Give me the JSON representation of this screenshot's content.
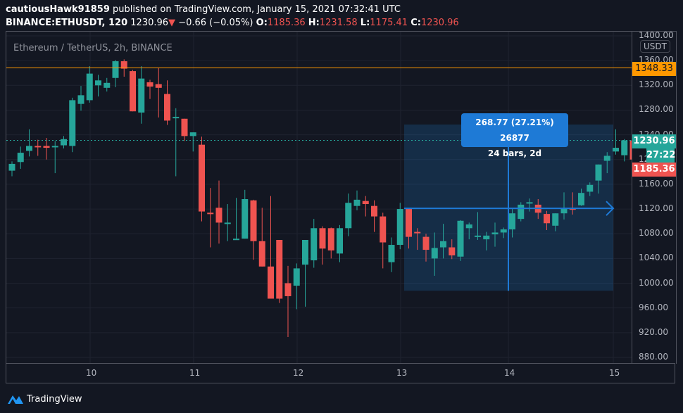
{
  "header": {
    "author": "cautiousHawk91859",
    "published": " published on TradingView.com, January 15, 2021 07:32:41 UTC",
    "symbol": "BINANCE:ETHUSDT, 120",
    "last": "1230.96",
    "change": "−0.66 (−0.05%)",
    "o_label": "O:",
    "o": "1185.36",
    "h_label": "H:",
    "h": "1231.58",
    "l_label": "L:",
    "l": "1175.41",
    "c_label": "C:",
    "c": "1230.96"
  },
  "legend": "Ethereum / TetherUS, 2h, BINANCE",
  "price_scale": {
    "currency": "USDT",
    "ticks": [
      "1400.00",
      "1360.00",
      "1320.00",
      "1280.00",
      "1240.00",
      "1200.00",
      "1160.00",
      "1120.00",
      "1080.00",
      "1040.00",
      "1000.00",
      "960.00",
      "920.00",
      "880.00"
    ],
    "tags": {
      "hline": "1348.33",
      "last": "1230.96",
      "countdown": "27:22",
      "open": "1185.36"
    }
  },
  "time_scale": {
    "ticks": [
      "10",
      "11",
      "12",
      "13",
      "14",
      "15"
    ]
  },
  "measure": {
    "line1": "268.77 (27.21%) 26877",
    "line2": "24 bars, 2d"
  },
  "brand": "TradingView",
  "colors": {
    "up": "#26a69a",
    "down": "#ef5350",
    "hline": "#ff9800",
    "measure": "#1e7ad6",
    "bg": "#131722"
  },
  "chart_data": {
    "type": "candlestick",
    "title": "Ethereum / TetherUS, 2h, BINANCE",
    "xlabel": "",
    "ylabel": "USDT",
    "ylim": [
      880,
      1400
    ],
    "x_ticks": [
      "10",
      "11",
      "12",
      "13",
      "14",
      "15"
    ],
    "horizontal_line": 1348.33,
    "last_price": 1230.96,
    "measure_box": {
      "from_price": 987.8,
      "to_price": 1256.6,
      "change": "268.77 (27.21%)",
      "bars": 24,
      "duration": "2d"
    },
    "candles": [
      [
        1182,
        1193,
        1197,
        1173
      ],
      [
        1196,
        1211,
        1221,
        1185
      ],
      [
        1214,
        1222,
        1249,
        1205
      ],
      [
        1222,
        1220,
        1232,
        1206
      ],
      [
        1222,
        1219,
        1235,
        1200
      ],
      [
        1220,
        1222,
        1230,
        1178
      ],
      [
        1223,
        1233,
        1238,
        1218
      ],
      [
        1222,
        1296,
        1300,
        1212
      ],
      [
        1290,
        1304,
        1319,
        1279
      ],
      [
        1296,
        1339,
        1351,
        1292
      ],
      [
        1320,
        1328,
        1337,
        1302
      ],
      [
        1316,
        1324,
        1332,
        1310
      ],
      [
        1332,
        1359,
        1361,
        1317
      ],
      [
        1359,
        1347,
        1362,
        1334
      ],
      [
        1343,
        1278,
        1345,
        1278
      ],
      [
        1276,
        1331,
        1351,
        1258
      ],
      [
        1325,
        1318,
        1329,
        1298
      ],
      [
        1322,
        1316,
        1348,
        1268
      ],
      [
        1306,
        1263,
        1328,
        1256
      ],
      [
        1267,
        1269,
        1283,
        1173
      ],
      [
        1266,
        1238,
        1264,
        1230
      ],
      [
        1238,
        1244,
        1240,
        1213
      ],
      [
        1224,
        1116,
        1237,
        1100
      ],
      [
        1114,
        1113,
        1154,
        1058
      ],
      [
        1122,
        1098,
        1166,
        1064
      ],
      [
        1098,
        1098,
        1128,
        1068
      ],
      [
        1072,
        1072,
        1138,
        1094
      ],
      [
        1072,
        1136,
        1151,
        1084
      ],
      [
        1134,
        1068,
        1135,
        1038
      ],
      [
        1068,
        1027,
        1122,
        1076
      ],
      [
        1027,
        975,
        1141,
        1012
      ],
      [
        1070,
        975,
        1034,
        968
      ],
      [
        1000,
        979,
        1028,
        913
      ],
      [
        996,
        1024,
        1032,
        958
      ],
      [
        1030,
        1070,
        1065,
        962
      ],
      [
        1037,
        1089,
        1104,
        1025
      ],
      [
        1089,
        1056,
        1092,
        1030
      ],
      [
        1089,
        1053,
        1090,
        1040
      ],
      [
        1048,
        1089,
        1094,
        1034
      ],
      [
        1089,
        1130,
        1145,
        1076
      ],
      [
        1125,
        1135,
        1150,
        1118
      ],
      [
        1133,
        1128,
        1141,
        1108
      ],
      [
        1125,
        1108,
        1134,
        1083
      ],
      [
        1108,
        1066,
        1114,
        1024
      ],
      [
        1034,
        1062,
        1074,
        1018
      ],
      [
        1062,
        1120,
        1130,
        1055
      ],
      [
        1120,
        1075,
        1118,
        1056
      ],
      [
        1083,
        1081,
        1089,
        1054
      ],
      [
        1075,
        1054,
        1080,
        1035
      ],
      [
        1040,
        1057,
        1082,
        1012
      ],
      [
        1058,
        1068,
        1096,
        1040
      ],
      [
        1058,
        1045,
        1071,
        1039
      ],
      [
        1043,
        1101,
        1102,
        1036
      ],
      [
        1089,
        1095,
        1098,
        1071
      ],
      [
        1075,
        1077,
        1115,
        1070
      ],
      [
        1071,
        1077,
        1083,
        1053
      ],
      [
        1079,
        1082,
        1098,
        1059
      ],
      [
        1082,
        1087,
        1090,
        1073
      ],
      [
        1087,
        1113,
        1120,
        1074
      ],
      [
        1104,
        1127,
        1131,
        1100
      ],
      [
        1129,
        1131,
        1137,
        1116
      ],
      [
        1127,
        1114,
        1136,
        1104
      ],
      [
        1112,
        1097,
        1117,
        1086
      ],
      [
        1093,
        1113,
        1097,
        1084
      ],
      [
        1113,
        1121,
        1147,
        1103
      ],
      [
        1121,
        1119,
        1147,
        1111
      ],
      [
        1126,
        1146,
        1153,
        1125
      ],
      [
        1148,
        1159,
        1163,
        1141
      ],
      [
        1166,
        1192,
        1190,
        1145
      ],
      [
        1198,
        1206,
        1212,
        1178
      ],
      [
        1213,
        1219,
        1249,
        1208
      ],
      [
        1207,
        1231,
        1233,
        1197
      ],
      [
        1231,
        1200,
        1232,
        1162
      ],
      [
        1200,
        1231,
        1234,
        1187
      ],
      [
        1232,
        1230,
        1257,
        1213
      ],
      [
        1231,
        1219,
        1240,
        1195
      ],
      [
        1220,
        1185,
        1230,
        1175
      ],
      [
        1185,
        1231,
        1232,
        1175
      ]
    ]
  }
}
